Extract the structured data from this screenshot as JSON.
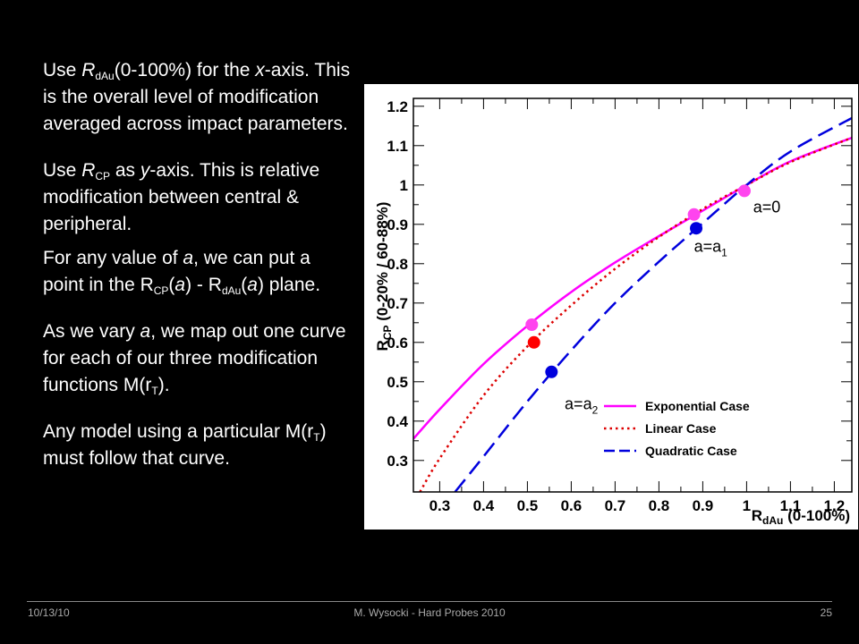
{
  "slide": {
    "p1": {
      "pre": "Use ",
      "r": "R",
      "sub": "dAu",
      "post": "(0-100%) for the ",
      "x": "x",
      "end": "-axis.  This is the overall level of modification averaged across impact parameters."
    },
    "p2": {
      "pre": "Use ",
      "r": "R",
      "sub": "CP",
      "post": " as ",
      "y": "y",
      "end": "-axis.  This is relative modification between central & peripheral."
    },
    "p3": {
      "t1": "For any value of ",
      "a1": "a",
      "t2": ", we can put a point in the R",
      "sub1": "CP",
      "t3": "(",
      "a2": "a",
      "t4": ") - R",
      "sub2": "dAu",
      "t5": "(",
      "a3": "a",
      "t6": ") plane."
    },
    "p4": {
      "t1": "As we vary ",
      "a1": "a",
      "t2": ", we map out one curve for each of our three modification functions M(r",
      "sub": "T",
      "t3": ")."
    },
    "p5": {
      "t1": "Any model using a particular M(r",
      "sub": "T",
      "t2": ") must follow that curve."
    }
  },
  "footer": {
    "date": "10/13/10",
    "author": "M. Wysocki - Hard Probes 2010",
    "page": "25"
  },
  "chart_data": {
    "type": "line",
    "xlabel": {
      "main": "R",
      "sub": "dAu",
      "rest": " (0-100%)"
    },
    "ylabel": {
      "main": "R",
      "sub": "CP",
      "rest": " (0-20% / 60-88%)"
    },
    "xlim": [
      0.24,
      1.24
    ],
    "ylim": [
      0.22,
      1.22
    ],
    "xticks": [
      "0.3",
      "0.4",
      "0.5",
      "0.6",
      "0.7",
      "0.8",
      "0.9",
      "1",
      "1.1",
      "1.2"
    ],
    "yticks": [
      "0.3",
      "0.4",
      "0.5",
      "0.6",
      "0.7",
      "0.8",
      "0.9",
      "1",
      "1.1",
      "1.2"
    ],
    "series": [
      {
        "name": "Exponential Case",
        "color": "#ff00ff",
        "style": "solid",
        "x": [
          0.24,
          0.3,
          0.4,
          0.5,
          0.6,
          0.7,
          0.8,
          0.9,
          1.0,
          1.1,
          1.24
        ],
        "y": [
          0.355,
          0.43,
          0.545,
          0.642,
          0.728,
          0.803,
          0.87,
          0.935,
          1.0,
          1.06,
          1.12
        ]
      },
      {
        "name": "Linear Case",
        "color": "#dd0000",
        "style": "dotted",
        "x": [
          0.255,
          0.3,
          0.4,
          0.5,
          0.6,
          0.7,
          0.8,
          0.9,
          1.0,
          1.1,
          1.24
        ],
        "y": [
          0.22,
          0.305,
          0.465,
          0.59,
          0.694,
          0.787,
          0.868,
          0.939,
          1.0,
          1.058,
          1.12
        ]
      },
      {
        "name": "Quadratic Case",
        "color": "#0000dd",
        "style": "dashed",
        "x": [
          0.335,
          0.4,
          0.5,
          0.6,
          0.7,
          0.8,
          0.9,
          1.0,
          1.1,
          1.24
        ],
        "y": [
          0.22,
          0.31,
          0.45,
          0.58,
          0.7,
          0.805,
          0.903,
          1.0,
          1.085,
          1.17
        ]
      }
    ],
    "points": [
      {
        "series": "Exponential Case",
        "color": "#ff44ee",
        "x": 0.51,
        "y": 0.645
      },
      {
        "series": "Exponential Case",
        "color": "#ff44ee",
        "x": 0.88,
        "y": 0.925
      },
      {
        "series": "Exponential Case",
        "color": "#ff44ee",
        "x": 0.995,
        "y": 0.985
      },
      {
        "series": "Linear Case",
        "color": "#ff0000",
        "x": 0.515,
        "y": 0.6
      },
      {
        "series": "Quadratic Case",
        "color": "#0000dd",
        "x": 0.555,
        "y": 0.525
      },
      {
        "series": "Quadratic Case",
        "color": "#0000dd",
        "x": 0.885,
        "y": 0.89
      }
    ],
    "annotations": [
      {
        "id": "a0",
        "text": "a=0",
        "sub": "",
        "x": 1.015,
        "y": 0.93
      },
      {
        "id": "a1",
        "text": "a=a",
        "sub": "1",
        "x": 0.88,
        "y": 0.83
      },
      {
        "id": "a2",
        "text": "a=a",
        "sub": "2",
        "x": 0.585,
        "y": 0.43
      }
    ],
    "legend": {
      "position": "bottom-right"
    }
  }
}
